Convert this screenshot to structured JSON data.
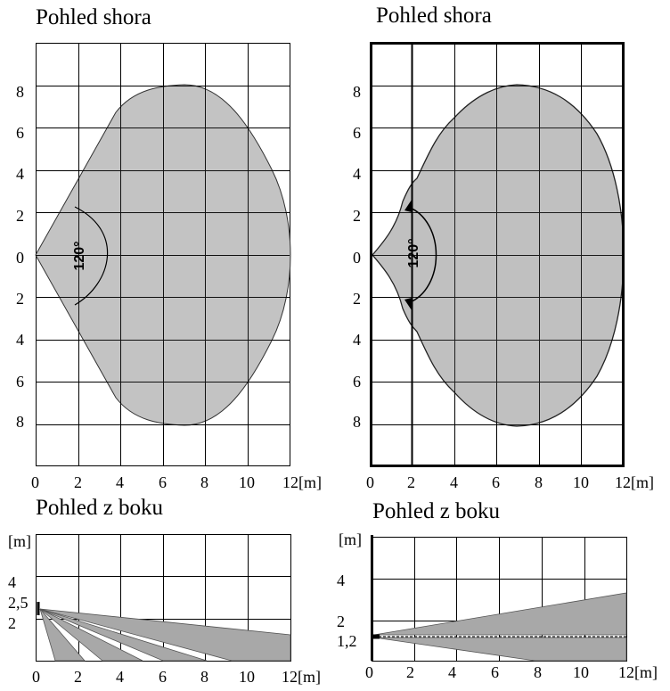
{
  "top_left": {
    "title": "Pohled shora",
    "y_ticks": [
      "8",
      "6",
      "4",
      "2",
      "0",
      "2",
      "4",
      "6",
      "8"
    ],
    "x_ticks": [
      "0",
      "2",
      "4",
      "6",
      "8",
      "10",
      "12[m]"
    ],
    "angle_label": "120°"
  },
  "top_right": {
    "title": "Pohled shora",
    "y_ticks": [
      "8",
      "6",
      "4",
      "2",
      "0",
      "2",
      "4",
      "6",
      "8"
    ],
    "x_ticks": [
      "0",
      "2",
      "4",
      "6",
      "8",
      "10",
      "12[m]"
    ],
    "angle_label": "120°"
  },
  "bottom_left": {
    "title": "Pohled z boku",
    "y_unit": "[m]",
    "y_ticks": [
      "4",
      "2,5",
      "2"
    ],
    "x_ticks": [
      "0",
      "2",
      "4",
      "6",
      "8",
      "10",
      "12[m]"
    ]
  },
  "bottom_right": {
    "title": "Pohled z boku",
    "y_unit": "[m]",
    "y_ticks": [
      "4",
      "2",
      "1,2"
    ],
    "x_ticks": [
      "0",
      "2",
      "4",
      "6",
      "8",
      "10",
      "12[m]"
    ]
  },
  "colors": {
    "zone_fill": "#c0c0c0",
    "side_fill": "#a8a8a8",
    "grid": "#000000"
  }
}
